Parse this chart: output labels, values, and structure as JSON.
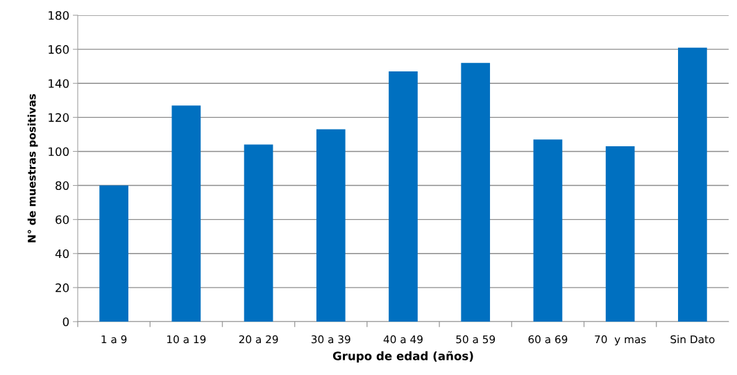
{
  "chart_data": {
    "type": "bar",
    "xlabel": "Grupo de edad (años)",
    "ylabel": "N° de muestras positivas",
    "categories": [
      "1 a 9",
      "10 a 19",
      "20 a 29",
      "30 a 39",
      "40 a 49",
      "50 a 59",
      "60 a 69",
      "70  y mas",
      "Sin Dato"
    ],
    "values": [
      80,
      127,
      104,
      113,
      147,
      152,
      107,
      103,
      161
    ],
    "color": "#0070c0",
    "ylim": [
      0,
      180
    ],
    "yticks": [
      0,
      20,
      40,
      60,
      80,
      100,
      120,
      140,
      160,
      180
    ],
    "grid": "y",
    "legend": false
  }
}
